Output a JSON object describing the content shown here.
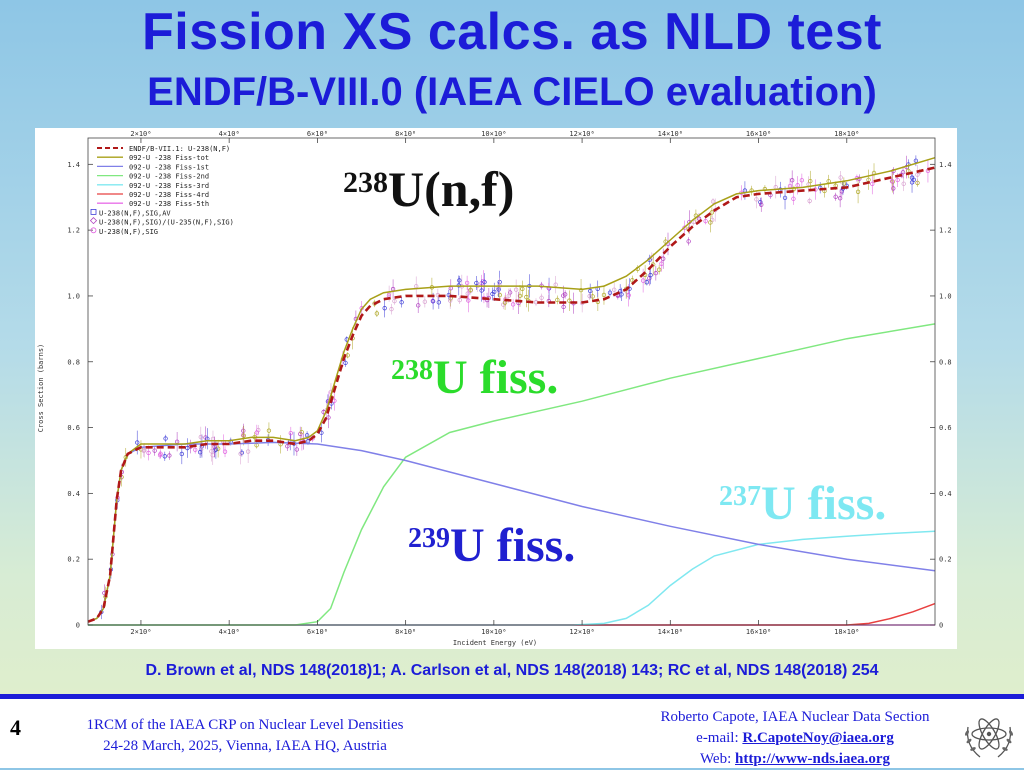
{
  "slide": {
    "title": "Fission XS calcs. as NLD test",
    "subtitle": "ENDF/B-VIII.0 (IAEA CIELO evaluation)",
    "references": "D. Brown et al, NDS 148(2018)1;  A. Carlson et al, NDS 148(2018) 143;  RC et al, NDS 148(2018) 254",
    "slide_number": "4",
    "meeting_line1": "1RCM of the IAEA CRP on Nuclear Level Densities",
    "meeting_line2": "24-28 March, 2025, Vienna, IAEA HQ, Austria",
    "author": "Roberto Capote, IAEA Nuclear Data Section",
    "email_label": "e-mail: ",
    "email": "R.CapoteNoy@iaea.org",
    "web_label": "Web:   ",
    "web": "http://www-nds.iaea.org",
    "logo_icon": "iaea-atom-olive-wreath-icon"
  },
  "chart_data": {
    "type": "line",
    "xlabel": "Incident Energy (eV)",
    "ylabel": "Cross Section (barns)",
    "xlim": [
      800000,
      20000000
    ],
    "ylim": [
      0,
      1.48
    ],
    "x_ticks": [
      "2×10⁶",
      "4×10⁶",
      "6×10⁶",
      "8×10⁶",
      "10×10⁶",
      "12×10⁶",
      "14×10⁶",
      "16×10⁶",
      "18×10⁶"
    ],
    "x_tick_values": [
      2000000,
      4000000,
      6000000,
      8000000,
      10000000,
      12000000,
      14000000,
      16000000,
      18000000
    ],
    "y_ticks": [
      "0",
      "0.2",
      "0.4",
      "0.6",
      "0.8",
      "1.0",
      "1.2",
      "1.4"
    ],
    "y_tick_values": [
      0,
      0.2,
      0.4,
      0.6,
      0.8,
      1.0,
      1.2,
      1.4
    ],
    "annotations": {
      "main_sup": "238",
      "main_text": "U(n,f)",
      "u238_sup": "238",
      "u238_text": "U fiss.",
      "u237_sup": "237",
      "u237_text": "U fiss.",
      "u239_sup": "239",
      "u239_text": "U fiss."
    },
    "legend_position": "top-left",
    "series": [
      {
        "name": "ENDF/B-VII.1: U-238(N,F)",
        "color": "#b01818",
        "dash": "7,4",
        "width": 2.6,
        "x": [
          800000,
          1000000,
          1150000,
          1300000,
          1450000,
          1550000,
          1700000,
          2000000,
          2500000,
          3000000,
          3500000,
          4000000,
          4500000,
          5000000,
          5500000,
          5800000,
          6000000,
          6200000,
          6400000,
          6600000,
          6800000,
          7000000,
          7200000,
          7500000,
          8000000,
          9000000,
          10000000,
          11000000,
          12000000,
          12500000,
          13000000,
          13500000,
          14000000,
          14500000,
          15000000,
          15500000,
          16000000,
          17000000,
          18000000,
          19000000,
          20000000
        ],
        "y": [
          0.01,
          0.02,
          0.05,
          0.15,
          0.38,
          0.47,
          0.52,
          0.54,
          0.54,
          0.54,
          0.55,
          0.55,
          0.56,
          0.56,
          0.55,
          0.56,
          0.58,
          0.63,
          0.72,
          0.81,
          0.88,
          0.94,
          0.97,
          0.99,
          1.0,
          1.0,
          0.99,
          0.98,
          0.98,
          0.99,
          1.02,
          1.08,
          1.15,
          1.21,
          1.26,
          1.3,
          1.31,
          1.32,
          1.33,
          1.36,
          1.39
        ]
      },
      {
        "name": "092-U -238  Fiss-tot",
        "color": "#a8a018",
        "width": 1.5,
        "x": [
          800000,
          1000000,
          1150000,
          1300000,
          1450000,
          1550000,
          1700000,
          2000000,
          2500000,
          3000000,
          3500000,
          4000000,
          4500000,
          5000000,
          5500000,
          5800000,
          6000000,
          6200000,
          6400000,
          6600000,
          6800000,
          7000000,
          7200000,
          7500000,
          8000000,
          9000000,
          10000000,
          11000000,
          12000000,
          12500000,
          13000000,
          13500000,
          14000000,
          14500000,
          15000000,
          15500000,
          16000000,
          17000000,
          18000000,
          19000000,
          20000000
        ],
        "y": [
          0.01,
          0.02,
          0.05,
          0.15,
          0.38,
          0.47,
          0.52,
          0.55,
          0.55,
          0.55,
          0.56,
          0.56,
          0.57,
          0.57,
          0.56,
          0.57,
          0.59,
          0.65,
          0.74,
          0.83,
          0.9,
          0.96,
          0.99,
          1.01,
          1.02,
          1.03,
          1.03,
          1.03,
          1.02,
          1.03,
          1.06,
          1.11,
          1.17,
          1.23,
          1.28,
          1.31,
          1.32,
          1.33,
          1.35,
          1.38,
          1.42
        ]
      },
      {
        "name": "092-U -238  Fiss-1st",
        "color": "#8080e8",
        "width": 1.5,
        "x": [
          800000,
          1000000,
          1150000,
          1300000,
          1450000,
          1550000,
          1700000,
          2000000,
          3000000,
          4000000,
          5000000,
          6000000,
          7000000,
          8000000,
          9000000,
          10000000,
          12000000,
          14000000,
          16000000,
          18000000,
          20000000
        ],
        "y": [
          0.01,
          0.02,
          0.05,
          0.15,
          0.38,
          0.47,
          0.52,
          0.54,
          0.55,
          0.55,
          0.555,
          0.55,
          0.53,
          0.5,
          0.465,
          0.43,
          0.36,
          0.3,
          0.245,
          0.2,
          0.165
        ]
      },
      {
        "name": "092-U -238  Fiss-2nd",
        "color": "#80e880",
        "width": 1.5,
        "x": [
          800000,
          5500000,
          6000000,
          6300000,
          6600000,
          7000000,
          7500000,
          8000000,
          9000000,
          10000000,
          12000000,
          14000000,
          16000000,
          18000000,
          20000000
        ],
        "y": [
          0,
          0,
          0.01,
          0.05,
          0.16,
          0.29,
          0.42,
          0.51,
          0.585,
          0.62,
          0.68,
          0.75,
          0.81,
          0.87,
          0.915
        ]
      },
      {
        "name": "092-U -238  Fiss-3rd",
        "color": "#80e8f0",
        "width": 1.5,
        "x": [
          800000,
          11800000,
          12500000,
          13000000,
          13500000,
          14000000,
          14500000,
          15000000,
          16000000,
          17000000,
          18000000,
          19000000,
          20000000
        ],
        "y": [
          0,
          0,
          0.005,
          0.02,
          0.06,
          0.12,
          0.17,
          0.21,
          0.245,
          0.26,
          0.27,
          0.278,
          0.285
        ]
      },
      {
        "name": "092-U -238  Fiss-4rd",
        "color": "#e84040",
        "width": 1.5,
        "x": [
          800000,
          18000000,
          18500000,
          19000000,
          19500000,
          20000000
        ],
        "y": [
          0,
          0,
          0.005,
          0.02,
          0.04,
          0.065
        ]
      },
      {
        "name": "092-U -238  Fiss-5th",
        "color": "#e870e8",
        "width": 1.5,
        "x": [
          800000,
          20000000
        ],
        "y": [
          0,
          0
        ]
      }
    ],
    "experimental_sets": [
      {
        "name": "U-238(N,F),SIG,AV",
        "marker": "square",
        "color": "#4040d8"
      },
      {
        "name": "U-238(N,F),SIG)/(U-235(N,F),SIG)",
        "marker": "diamond",
        "color": "#b040c0"
      },
      {
        "name": "U-238(N,F),SIG",
        "marker": "circle",
        "color": "#e060e0"
      }
    ]
  }
}
